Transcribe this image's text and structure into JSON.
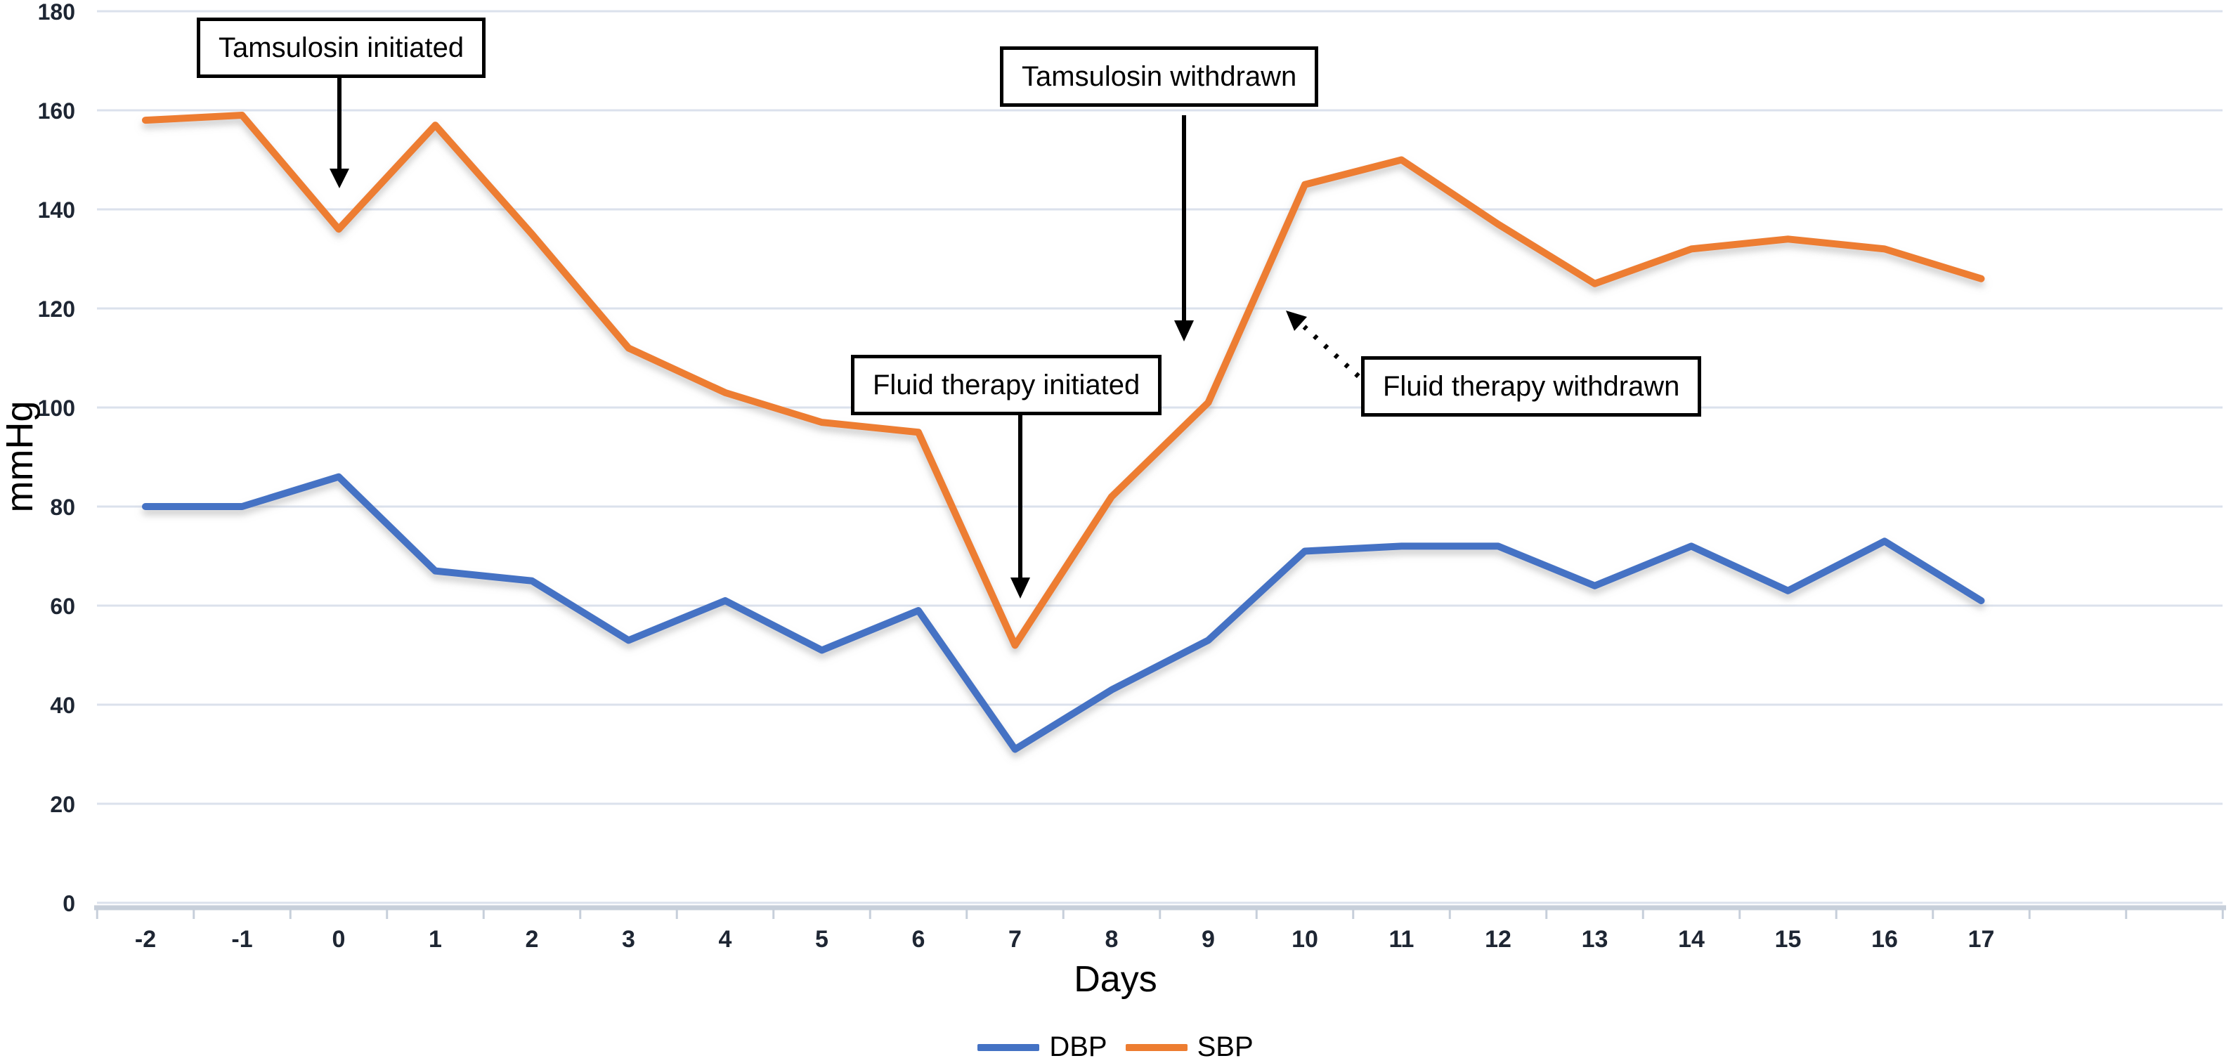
{
  "chart_data": {
    "type": "line",
    "title": "",
    "x": [
      -2,
      -1,
      0,
      1,
      2,
      3,
      4,
      5,
      6,
      7,
      8,
      9,
      10,
      11,
      12,
      13,
      14,
      15,
      16,
      17
    ],
    "xlabel": "Days",
    "ylabel": "mmHg",
    "ylim": [
      0,
      180
    ],
    "yticks": [
      0,
      20,
      40,
      60,
      80,
      100,
      120,
      140,
      160,
      180
    ],
    "grid": true,
    "legend_position": "bottom-center",
    "series": [
      {
        "name": "DBP",
        "color": "#4472C4",
        "values": [
          80,
          80,
          86,
          67,
          65,
          53,
          61,
          51,
          59,
          31,
          43,
          53,
          71,
          72,
          72,
          64,
          72,
          63,
          73,
          61
        ]
      },
      {
        "name": "SBP",
        "color": "#ED7D31",
        "values": [
          158,
          159,
          136,
          157,
          135,
          112,
          103,
          97,
          95,
          52,
          82,
          101,
          145,
          150,
          137,
          125,
          132,
          134,
          132,
          126
        ]
      }
    ],
    "annotations": [
      {
        "id": "tamsulosin-initiated",
        "text": "Tamsulosin initiated",
        "arrow_style": "solid",
        "target": {
          "day": 0,
          "series": "SBP"
        }
      },
      {
        "id": "tamsulosin-withdrawn",
        "text": "Tamsulosin withdrawn",
        "arrow_style": "solid",
        "target": {
          "day": 9,
          "series": "SBP"
        }
      },
      {
        "id": "fluid-therapy-initiated",
        "text": "Fluid therapy initiated",
        "arrow_style": "solid",
        "target": {
          "day": 7,
          "series": "SBP"
        }
      },
      {
        "id": "fluid-therapy-withdrawn",
        "text": "Fluid therapy withdrawn",
        "arrow_style": "dotted",
        "target": {
          "day": 10,
          "series": "SBP"
        }
      }
    ]
  },
  "axis_titles": {
    "x": "Days",
    "y": "mmHg"
  },
  "legend": {
    "items": [
      {
        "label": "DBP",
        "color": "#4472C4"
      },
      {
        "label": "SBP",
        "color": "#ED7D31"
      }
    ]
  },
  "annotation_labels": {
    "tamsulosin_initiated": "Tamsulosin initiated",
    "tamsulosin_withdrawn": "Tamsulosin withdrawn",
    "fluid_therapy_initiated": "Fluid therapy initiated",
    "fluid_therapy_withdrawn": "Fluid therapy withdrawn"
  },
  "colors": {
    "dbp_line": "#4472C4",
    "sbp_line": "#ED7D31",
    "gridline": "#dbe1ec",
    "axis_line": "#c7cfda",
    "tick_label": "#1e2633",
    "annotation_border": "#000000",
    "background": "#ffffff"
  }
}
